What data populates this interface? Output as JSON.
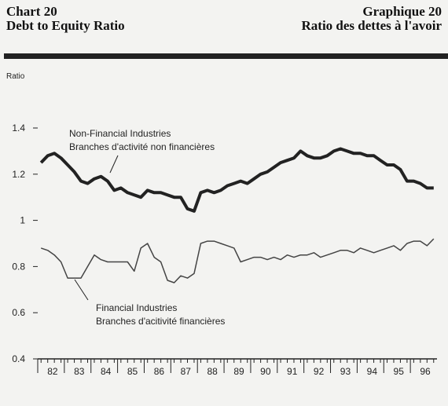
{
  "chart_data": {
    "type": "line",
    "title_left": [
      "Chart 20",
      "Debt to Equity Ratio"
    ],
    "title_right": [
      "Graphique 20",
      "Ratio des dettes à l'avoir"
    ],
    "y_label": "Ratio",
    "x": [
      1982.125,
      1982.375,
      1982.625,
      1982.875,
      1983.125,
      1983.375,
      1983.625,
      1983.875,
      1984.125,
      1984.375,
      1984.625,
      1984.875,
      1985.125,
      1985.375,
      1985.625,
      1985.875,
      1986.125,
      1986.375,
      1986.625,
      1986.875,
      1987.125,
      1987.375,
      1987.625,
      1987.875,
      1988.125,
      1988.375,
      1988.625,
      1988.875,
      1989.125,
      1989.375,
      1989.625,
      1989.875,
      1990.125,
      1990.375,
      1990.625,
      1990.875,
      1991.125,
      1991.375,
      1991.625,
      1991.875,
      1992.125,
      1992.375,
      1992.625,
      1992.875,
      1993.125,
      1993.375,
      1993.625,
      1993.875,
      1994.125,
      1994.375,
      1994.625,
      1994.875,
      1995.125,
      1995.375,
      1995.625,
      1995.875,
      1996.125,
      1996.375,
      1996.625,
      1996.875
    ],
    "series": [
      {
        "name": "Non-Financial Industries",
        "name_fr": "Branches d'activité non financières",
        "color": "#222222",
        "values": [
          1.25,
          1.28,
          1.29,
          1.27,
          1.24,
          1.21,
          1.17,
          1.16,
          1.18,
          1.19,
          1.17,
          1.13,
          1.14,
          1.12,
          1.11,
          1.1,
          1.13,
          1.12,
          1.12,
          1.11,
          1.1,
          1.1,
          1.05,
          1.04,
          1.12,
          1.13,
          1.12,
          1.13,
          1.15,
          1.16,
          1.17,
          1.16,
          1.18,
          1.2,
          1.21,
          1.23,
          1.25,
          1.26,
          1.27,
          1.3,
          1.28,
          1.27,
          1.27,
          1.28,
          1.3,
          1.31,
          1.3,
          1.29,
          1.29,
          1.28,
          1.28,
          1.26,
          1.24,
          1.24,
          1.22,
          1.17,
          1.17,
          1.16,
          1.14,
          1.14
        ]
      },
      {
        "name": "Financial Industries",
        "name_fr": "Branches d'acitivité financières",
        "color": "#444444",
        "values": [
          0.88,
          0.87,
          0.85,
          0.82,
          0.75,
          0.75,
          0.75,
          0.8,
          0.85,
          0.83,
          0.82,
          0.82,
          0.82,
          0.82,
          0.78,
          0.88,
          0.9,
          0.84,
          0.82,
          0.74,
          0.73,
          0.76,
          0.75,
          0.77,
          0.9,
          0.91,
          0.91,
          0.9,
          0.89,
          0.88,
          0.82,
          0.83,
          0.84,
          0.84,
          0.83,
          0.84,
          0.83,
          0.85,
          0.84,
          0.85,
          0.85,
          0.86,
          0.84,
          0.85,
          0.86,
          0.87,
          0.87,
          0.86,
          0.88,
          0.87,
          0.86,
          0.87,
          0.88,
          0.89,
          0.87,
          0.9,
          0.91,
          0.91,
          0.89,
          0.92
        ]
      }
    ],
    "xlim": [
      1982,
      1997
    ],
    "xticks": [
      {
        "value": 1982.5,
        "label": "82"
      },
      {
        "value": 1983.5,
        "label": "83"
      },
      {
        "value": 1984.5,
        "label": "84"
      },
      {
        "value": 1985.5,
        "label": "85"
      },
      {
        "value": 1986.5,
        "label": "86"
      },
      {
        "value": 1987.5,
        "label": "87"
      },
      {
        "value": 1988.5,
        "label": "88"
      },
      {
        "value": 1989.5,
        "label": "89"
      },
      {
        "value": 1990.5,
        "label": "90"
      },
      {
        "value": 1991.5,
        "label": "91"
      },
      {
        "value": 1992.5,
        "label": "92"
      },
      {
        "value": 1993.5,
        "label": "93"
      },
      {
        "value": 1994.5,
        "label": "94"
      },
      {
        "value": 1995.5,
        "label": "95"
      },
      {
        "value": 1996.5,
        "label": "96"
      }
    ],
    "ylim": [
      0.4,
      1.4
    ],
    "yticks": [
      0.4,
      0.6,
      0.8,
      1,
      1.2,
      1.4
    ],
    "grid": false
  }
}
